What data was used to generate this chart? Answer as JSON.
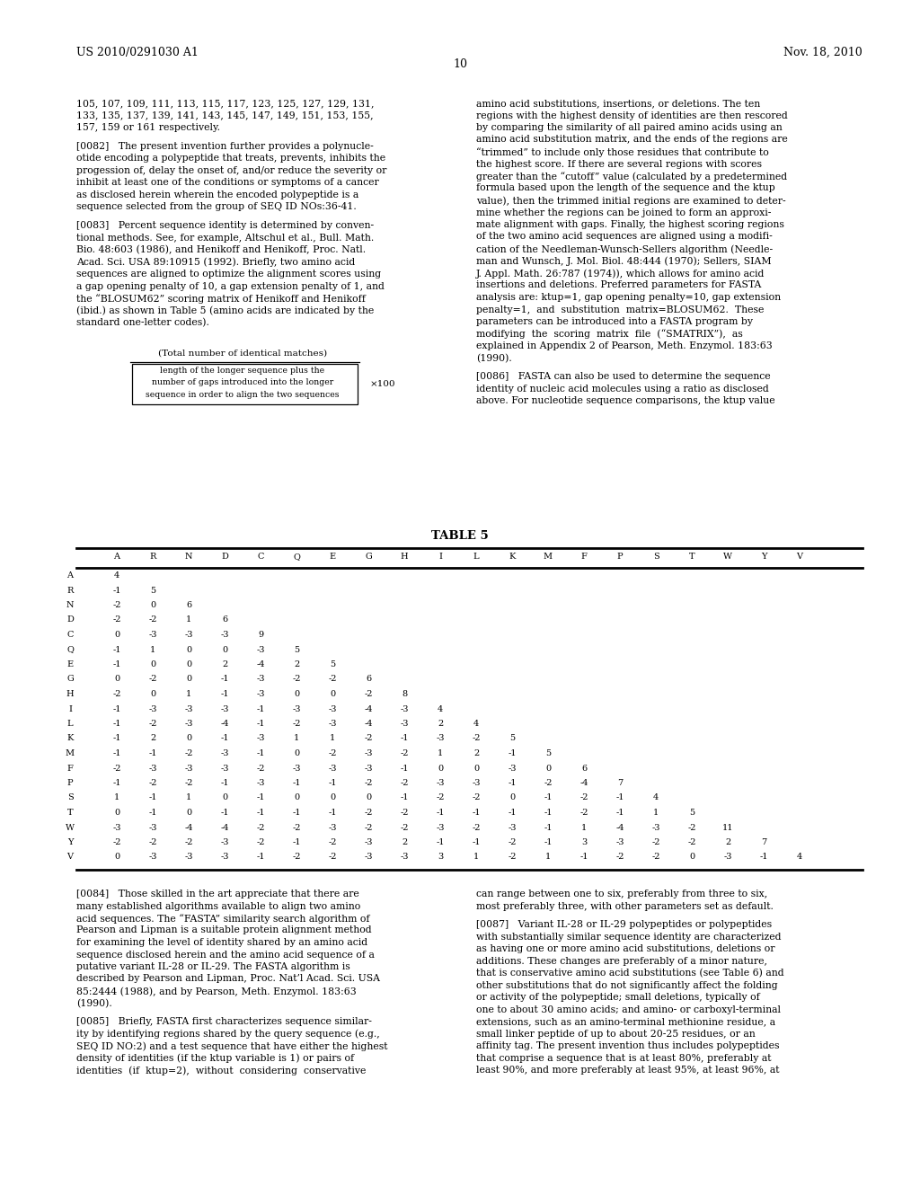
{
  "header_left": "US 2010/0291030 A1",
  "header_right": "Nov. 18, 2010",
  "page_number": "10",
  "bg_color": "#ffffff",
  "text_color": "#000000",
  "left_paragraphs": [
    "105, 107, 109, 111, 113, 115, 117, 123, 125, 127, 129, 131,",
    "133, 135, 137, 139, 141, 143, 145, 147, 149, 151, 153, 155,",
    "157, 159 or 161 respectively.",
    "",
    "[0082]   The present invention further provides a polynucle-",
    "otide encoding a polypeptide that treats, prevents, inhibits the",
    "progession of, delay the onset of, and/or reduce the severity or",
    "inhibit at least one of the conditions or symptoms of a cancer",
    "as disclosed herein wherein the encoded polypeptide is a",
    "sequence selected from the group of SEQ ID NOs:36-41.",
    "",
    "[0083]   Percent sequence identity is determined by conven-",
    "tional methods. See, for example, Altschul et al., Bull. Math.",
    "Bio. 48:603 (1986), and Henikoff and Henikoff, Proc. Natl.",
    "Acad. Sci. USA 89:10915 (1992). Briefly, two amino acid",
    "sequences are aligned to optimize the alignment scores using",
    "a gap opening penalty of 10, a gap extension penalty of 1, and",
    "the “BLOSUM62” scoring matrix of Henikoff and Henikoff",
    "(ibid.) as shown in Table 5 (amino acids are indicated by the",
    "standard one-letter codes)."
  ],
  "right_paragraphs": [
    "amino acid substitutions, insertions, or deletions. The ten",
    "regions with the highest density of identities are then rescored",
    "by comparing the similarity of all paired amino acids using an",
    "amino acid substitution matrix, and the ends of the regions are",
    "“trimmed” to include only those residues that contribute to",
    "the highest score. If there are several regions with scores",
    "greater than the “cutoff” value (calculated by a predetermined",
    "formula based upon the length of the sequence and the ktup",
    "value), then the trimmed initial regions are examined to deter-",
    "mine whether the regions can be joined to form an approxi-",
    "mate alignment with gaps. Finally, the highest scoring regions",
    "of the two amino acid sequences are aligned using a modifi-",
    "cation of the Needleman-Wunsch-Sellers algorithm (Needle-",
    "man and Wunsch, J. Mol. Biol. 48:444 (1970); Sellers, SIAM",
    "J. Appl. Math. 26:787 (1974)), which allows for amino acid",
    "insertions and deletions. Preferred parameters for FASTA",
    "analysis are: ktup=1, gap opening penalty=10, gap extension",
    "penalty=1,  and  substitution  matrix=BLOSUM62.  These",
    "parameters can be introduced into a FASTA program by",
    "modifying  the  scoring  matrix  file  (“SMATRIX”),  as",
    "explained in Appendix 2 of Pearson, Meth. Enzymol. 183:63",
    "(1990).",
    "",
    "[0086]   FASTA can also be used to determine the sequence",
    "identity of nucleic acid molecules using a ratio as disclosed",
    "above. For nucleotide sequence comparisons, the ktup value"
  ],
  "formula_label": "(Total number of identical matches)",
  "formula_denom_lines": [
    "length of the longer sequence plus the",
    "number of gaps introduced into the longer",
    "sequence in order to align the two sequences"
  ],
  "formula_multiplier": "×100",
  "table_title": "TABLE 5",
  "table_header": [
    "A",
    "R",
    "N",
    "D",
    "C",
    "Q",
    "E",
    "G",
    "H",
    "I",
    "L",
    "K",
    "M",
    "F",
    "P",
    "S",
    "T",
    "W",
    "Y",
    "V"
  ],
  "table_rows": [
    [
      "A",
      "4"
    ],
    [
      "R",
      "-1",
      "5"
    ],
    [
      "N",
      "-2",
      "0",
      "6"
    ],
    [
      "D",
      "-2",
      "-2",
      "1",
      "6"
    ],
    [
      "C",
      "0",
      "-3",
      "-3",
      "-3",
      "9"
    ],
    [
      "Q",
      "-1",
      "1",
      "0",
      "0",
      "-3",
      "5"
    ],
    [
      "E",
      "-1",
      "0",
      "0",
      "2",
      "-4",
      "2",
      "5"
    ],
    [
      "G",
      "0",
      "-2",
      "0",
      "-1",
      "-3",
      "-2",
      "-2",
      "6"
    ],
    [
      "H",
      "-2",
      "0",
      "1",
      "-1",
      "-3",
      "0",
      "0",
      "-2",
      "8"
    ],
    [
      "I",
      "-1",
      "-3",
      "-3",
      "-3",
      "-1",
      "-3",
      "-3",
      "-4",
      "-3",
      "4"
    ],
    [
      "L",
      "-1",
      "-2",
      "-3",
      "-4",
      "-1",
      "-2",
      "-3",
      "-4",
      "-3",
      "2",
      "4"
    ],
    [
      "K",
      "-1",
      "2",
      "0",
      "-1",
      "-3",
      "1",
      "1",
      "-2",
      "-1",
      "-3",
      "-2",
      "5"
    ],
    [
      "M",
      "-1",
      "-1",
      "-2",
      "-3",
      "-1",
      "0",
      "-2",
      "-3",
      "-2",
      "1",
      "2",
      "-1",
      "5"
    ],
    [
      "F",
      "-2",
      "-3",
      "-3",
      "-3",
      "-2",
      "-3",
      "-3",
      "-3",
      "-1",
      "0",
      "0",
      "-3",
      "0",
      "6"
    ],
    [
      "P",
      "-1",
      "-2",
      "-2",
      "-1",
      "-3",
      "-1",
      "-1",
      "-2",
      "-2",
      "-3",
      "-3",
      "-1",
      "-2",
      "-4",
      "7"
    ],
    [
      "S",
      "1",
      "-1",
      "1",
      "0",
      "-1",
      "0",
      "0",
      "0",
      "-1",
      "-2",
      "-2",
      "0",
      "-1",
      "-2",
      "-1",
      "4"
    ],
    [
      "T",
      "0",
      "-1",
      "0",
      "-1",
      "-1",
      "-1",
      "-1",
      "-2",
      "-2",
      "-1",
      "-1",
      "-1",
      "-1",
      "-2",
      "-1",
      "1",
      "5"
    ],
    [
      "W",
      "-3",
      "-3",
      "-4",
      "-4",
      "-2",
      "-2",
      "-3",
      "-2",
      "-2",
      "-3",
      "-2",
      "-3",
      "-1",
      "1",
      "-4",
      "-3",
      "-2",
      "11"
    ],
    [
      "Y",
      "-2",
      "-2",
      "-2",
      "-3",
      "-2",
      "-1",
      "-2",
      "-3",
      "2",
      "-1",
      "-1",
      "-2",
      "-1",
      "3",
      "-3",
      "-2",
      "-2",
      "2",
      "7"
    ],
    [
      "V",
      "0",
      "-3",
      "-3",
      "-3",
      "-1",
      "-2",
      "-2",
      "-3",
      "-3",
      "3",
      "1",
      "-2",
      "1",
      "-1",
      "-2",
      "-2",
      "0",
      "-3",
      "-1",
      "4"
    ]
  ],
  "bottom_left_paragraphs": [
    "[0084]   Those skilled in the art appreciate that there are",
    "many established algorithms available to align two amino",
    "acid sequences. The “FASTA” similarity search algorithm of",
    "Pearson and Lipman is a suitable protein alignment method",
    "for examining the level of identity shared by an amino acid",
    "sequence disclosed herein and the amino acid sequence of a",
    "putative variant IL-28 or IL-29. The FASTA algorithm is",
    "described by Pearson and Lipman, Proc. Nat’l Acad. Sci. USA",
    "85:2444 (1988), and by Pearson, Meth. Enzymol. 183:63",
    "(1990).",
    "",
    "[0085]   Briefly, FASTA first characterizes sequence similar-",
    "ity by identifying regions shared by the query sequence (e.g.,",
    "SEQ ID NO:2) and a test sequence that have either the highest",
    "density of identities (if the ktup variable is 1) or pairs of",
    "identities  (if  ktup=2),  without  considering  conservative"
  ],
  "bottom_right_paragraphs": [
    "can range between one to six, preferably from three to six,",
    "most preferably three, with other parameters set as default.",
    "",
    "[0087]   Variant IL-28 or IL-29 polypeptides or polypeptides",
    "with substantially similar sequence identity are characterized",
    "as having one or more amino acid substitutions, deletions or",
    "additions. These changes are preferably of a minor nature,",
    "that is conservative amino acid substitutions (see Table 6) and",
    "other substitutions that do not significantly affect the folding",
    "or activity of the polypeptide; small deletions, typically of",
    "one to about 30 amino acids; and amino- or carboxyl-terminal",
    "extensions, such as an amino-terminal methionine residue, a",
    "small linker peptide of up to about 20-25 residues, or an",
    "affinity tag. The present invention thus includes polypeptides",
    "that comprise a sequence that is at least 80%, preferably at",
    "least 90%, and more preferably at least 95%, at least 96%, at"
  ]
}
